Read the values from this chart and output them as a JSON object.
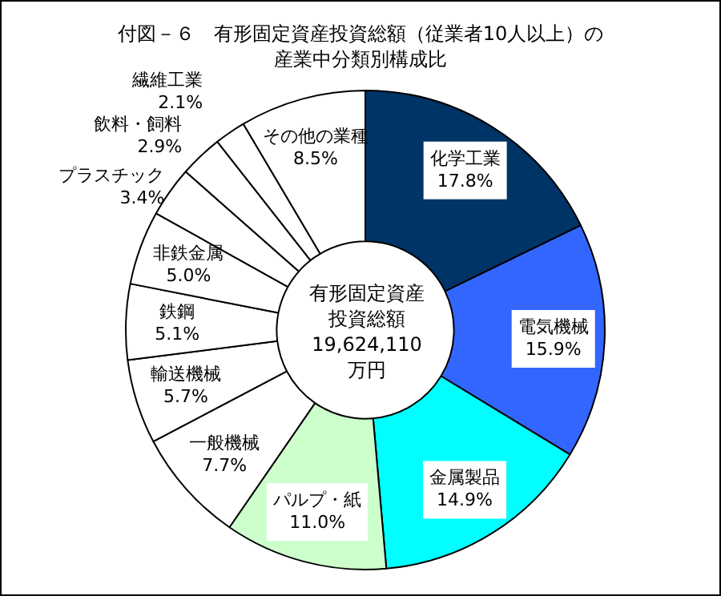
{
  "chart_data": {
    "type": "donut",
    "title": "付図－６　有形固定資産投資総額（従業者10人以上）の産業中分類別構成比",
    "categories": [
      "化学工業",
      "電気機械",
      "金属製品",
      "パルプ・紙",
      "一般機械",
      "輸送機械",
      "鉄鋼",
      "非鉄金属",
      "プラスチック",
      "飲料・飼料",
      "繊維工業",
      "その他の業種"
    ],
    "values": [
      17.8,
      15.9,
      14.9,
      11.0,
      7.7,
      5.7,
      5.1,
      5.0,
      3.4,
      2.9,
      2.1,
      8.5
    ],
    "value_labels": [
      "17.8%",
      "15.9%",
      "14.9%",
      "11.0%",
      "7.7%",
      "5.7%",
      "5.1%",
      "5.0%",
      "3.4%",
      "2.9%",
      "2.1%",
      "8.5%"
    ],
    "colors": [
      "#003366",
      "#3366ff",
      "#00ffff",
      "#ccffcc",
      "#ffffff",
      "#ffffff",
      "#ffffff",
      "#ffffff",
      "#ffffff",
      "#ffffff",
      "#ffffff",
      "#ffffff"
    ],
    "annotations": [
      "有形固定資産投資総額\n19,624,110\n万円"
    ],
    "legend": false
  }
}
